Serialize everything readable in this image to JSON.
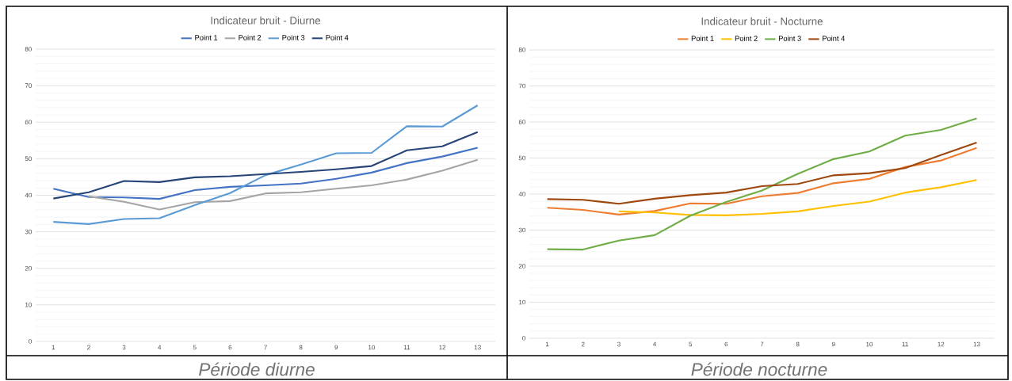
{
  "chart_data": [
    {
      "type": "line",
      "title": "Indicateur bruit - Diurne",
      "categories": [
        "1",
        "2",
        "3",
        "4",
        "5",
        "6",
        "7",
        "8",
        "9",
        "10",
        "11",
        "12",
        "13"
      ],
      "series": [
        {
          "name": "Point 1",
          "color": "#4472c4",
          "values": [
            41.8,
            39.5,
            39.4,
            39.0,
            41.4,
            42.3,
            42.7,
            43.2,
            44.5,
            46.2,
            48.8,
            50.6,
            53.0
          ]
        },
        {
          "name": "Point 2",
          "color": "#a5a5a5",
          "values": [
            null,
            39.7,
            38.2,
            36.1,
            38.1,
            38.4,
            40.5,
            40.8,
            41.8,
            42.7,
            44.3,
            46.7,
            49.7
          ]
        },
        {
          "name": "Point 3",
          "color": "#5b9bd5",
          "values": [
            32.7,
            32.1,
            33.5,
            33.7,
            37.3,
            40.6,
            45.5,
            48.4,
            51.5,
            51.6,
            58.9,
            58.8,
            64.6
          ]
        },
        {
          "name": "Point 4",
          "color": "#264478",
          "values": [
            39.1,
            40.8,
            43.9,
            43.6,
            44.9,
            45.2,
            45.8,
            46.4,
            47.1,
            48.0,
            52.3,
            53.4,
            57.3
          ]
        }
      ],
      "ylim": [
        0,
        80
      ],
      "yticks": [
        0,
        10,
        20,
        30,
        40,
        50,
        60,
        70,
        80
      ],
      "grid": "y",
      "legend": "top",
      "marker": "none",
      "line_style": "solid",
      "annotations": [
        "*Période diurne*"
      ]
    },
    {
      "type": "line",
      "title": "Indicateur bruit - Nocturne",
      "categories": [
        "1",
        "2",
        "3",
        "4",
        "5",
        "6",
        "7",
        "8",
        "9",
        "10",
        "11",
        "12",
        "13"
      ],
      "series": [
        {
          "name": "Point 1",
          "color": "#ed7d31",
          "values": [
            36.2,
            35.6,
            34.3,
            35.3,
            37.4,
            37.3,
            39.4,
            40.3,
            43.0,
            44.2,
            47.5,
            49.3,
            52.8
          ]
        },
        {
          "name": "Point 2",
          "color": "#ffc000",
          "values": [
            null,
            null,
            35.2,
            34.9,
            34.2,
            34.1,
            34.5,
            35.2,
            36.7,
            37.9,
            40.4,
            41.9,
            43.9
          ]
        },
        {
          "name": "Point 3",
          "color": "#70ad47",
          "values": [
            24.7,
            24.6,
            27.1,
            28.6,
            34.0,
            37.8,
            41.0,
            45.6,
            49.7,
            51.8,
            56.2,
            57.8,
            61.0
          ]
        },
        {
          "name": "Point 4",
          "color": "#9e480e",
          "values": [
            38.6,
            38.4,
            37.3,
            38.7,
            39.7,
            40.4,
            42.2,
            42.8,
            45.2,
            45.8,
            47.2,
            50.8,
            54.3
          ]
        }
      ],
      "ylim": [
        0,
        80
      ],
      "yticks": [
        0,
        10,
        20,
        30,
        40,
        50,
        60,
        70,
        80
      ],
      "grid": "y",
      "legend": "top",
      "marker": "none",
      "line_style": "solid",
      "annotations": [
        "*Période nocturne*"
      ]
    }
  ]
}
